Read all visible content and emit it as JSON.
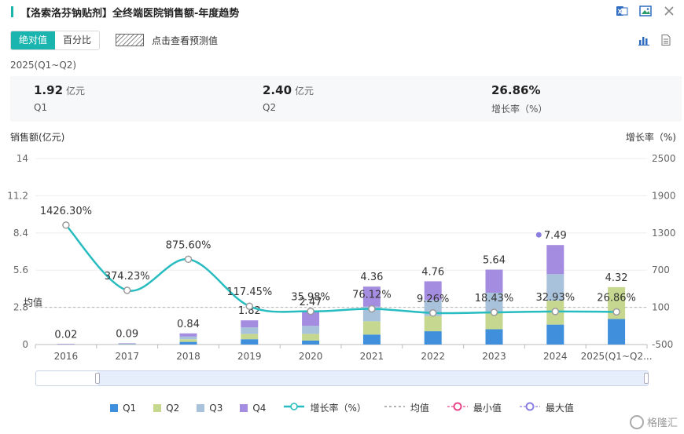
{
  "header": {
    "title": "【洛索洛芬钠贴剂】全终端医院销售额-年度趋势",
    "icons": [
      "excel-export-icon",
      "image-export-icon",
      "close-icon"
    ]
  },
  "toolbar": {
    "absolute_label": "绝对值",
    "percent_label": "百分比",
    "forecast_label": "点击查看预测值",
    "view_icons": [
      "bar-chart-icon",
      "table-view-icon"
    ]
  },
  "period": "2025(Q1~Q2)",
  "stats": [
    {
      "value": "1.92",
      "unit": "亿元",
      "label": "Q1"
    },
    {
      "value": "2.40",
      "unit": "亿元",
      "label": "Q2"
    },
    {
      "value": "26.86%",
      "unit": "",
      "label": "增长率（%）"
    }
  ],
  "colors": {
    "q1": "#3f8fdc",
    "q2": "#c6d88f",
    "q3": "#a9c2dc",
    "q4": "#a48ce0",
    "line": "#26bcc0",
    "min": "#e8478b",
    "max": "#8a7fe0"
  },
  "chart_data": {
    "type": "bar",
    "ylabel": "销售额(亿元)",
    "y2label": "增长率（%)",
    "ylim": [
      0,
      14
    ],
    "yticks": [
      "0",
      "2.8",
      "5.6",
      "8.4",
      "11.2",
      "14"
    ],
    "y2lim": [
      -500,
      2500
    ],
    "y2ticks": [
      "-500",
      "100",
      "700",
      "1300",
      "1900",
      "2500"
    ],
    "categories": [
      "2016",
      "2017",
      "2018",
      "2019",
      "2020",
      "2021",
      "2022",
      "2023",
      "2024",
      "2025(Q1~Q2..."
    ],
    "series": [
      {
        "name": "Q1",
        "values": [
          0.005,
          0.02,
          0.2,
          0.4,
          0.3,
          0.75,
          1.0,
          1.15,
          1.5,
          1.92
        ]
      },
      {
        "name": "Q2",
        "values": [
          0.005,
          0.02,
          0.2,
          0.4,
          0.5,
          1.0,
          1.15,
          1.3,
          1.8,
          2.4
        ]
      },
      {
        "name": "Q3",
        "values": [
          0.005,
          0.02,
          0.2,
          0.5,
          0.6,
          1.1,
          1.2,
          1.45,
          2.0,
          0
        ]
      },
      {
        "name": "Q4",
        "values": [
          0.005,
          0.03,
          0.24,
          0.52,
          1.07,
          1.51,
          1.41,
          1.74,
          2.19,
          0
        ]
      }
    ],
    "totals": [
      "0.02",
      "0.09",
      "0.84",
      "1.82",
      "2.47",
      "4.36",
      "4.76",
      "5.64",
      "7.49",
      "4.32"
    ],
    "growth": {
      "name": "增长率（%）",
      "values": [
        1426.3,
        374.23,
        875.6,
        117.45,
        35.98,
        76.12,
        9.26,
        18.43,
        32.93,
        26.86
      ],
      "labels": [
        "1426.30%",
        "374.23%",
        "875.60%",
        "117.45%",
        "35.98%",
        "76.12%",
        "9.26%",
        "18.43%",
        "32.93%",
        "26.86%"
      ]
    },
    "mean_label": "均值",
    "mean_value": 2.8,
    "max_index": 8,
    "legend_position": "bottom"
  },
  "legend": [
    {
      "label": "Q1",
      "kind": "square",
      "color": "#3f8fdc"
    },
    {
      "label": "Q2",
      "kind": "square",
      "color": "#c6d88f"
    },
    {
      "label": "Q3",
      "kind": "square",
      "color": "#a9c2dc"
    },
    {
      "label": "Q4",
      "kind": "square",
      "color": "#a48ce0"
    },
    {
      "label": "增长率（%）",
      "kind": "line",
      "color": "#26bcc0"
    },
    {
      "label": "均值",
      "kind": "dash",
      "color": "#999999"
    },
    {
      "label": "最小值",
      "kind": "ring",
      "color": "#e8478b"
    },
    {
      "label": "最大值",
      "kind": "ring",
      "color": "#8a7fe0"
    }
  ],
  "watermark": "格隆汇"
}
